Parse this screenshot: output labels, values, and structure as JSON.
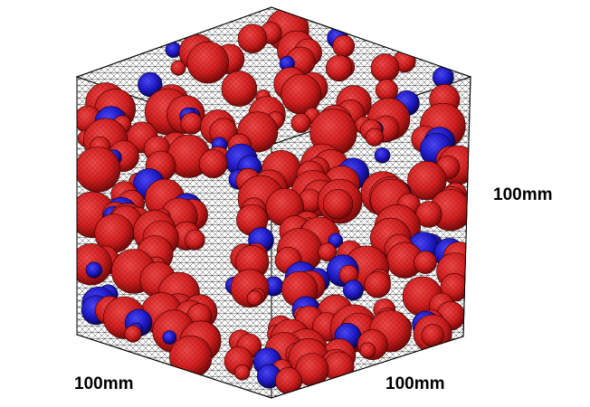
{
  "labels": {
    "right_edge": "100mm",
    "bottom_left_edge": "100mm",
    "bottom_right_edge": "100mm"
  },
  "colors": {
    "background": "#ffffff",
    "mesh_line": "#000000",
    "aggregate_large": "#d42020",
    "aggregate_small": "#1a1ad0"
  }
}
